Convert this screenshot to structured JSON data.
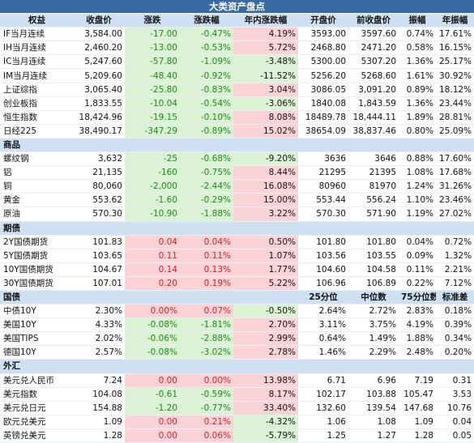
{
  "title": "大类资产盘点",
  "headers": [
    "权益",
    "收盘价",
    "涨跌",
    "涨跌幅",
    "年内涨跌幅",
    "开盘价",
    "前收盘价",
    "振幅",
    "年振幅"
  ],
  "sections": [
    {
      "name": "权益",
      "is_header": true,
      "rows": [
        {
          "name": "IF当月连续",
          "close": "3,584.00",
          "chg": "-17.00",
          "pct": "-0.47%",
          "ytd": "4.19%",
          "open": "3593.00",
          "prev": "3597.60",
          "amp": "0.74%",
          "yamp": "17.61%"
        },
        {
          "name": "IH当月连续",
          "close": "2,460.20",
          "chg": "-13.00",
          "pct": "-0.53%",
          "ytd": "5.72%",
          "open": "2468.80",
          "prev": "2471.20",
          "amp": "0.58%",
          "yamp": "16.15%"
        },
        {
          "name": "IC当月连续",
          "close": "5,247.60",
          "chg": "-57.80",
          "pct": "-1.09%",
          "ytd": "-3.48%",
          "open": "5300.00",
          "prev": "5307.20",
          "amp": "1.36%",
          "yamp": "25.17%"
        },
        {
          "name": "IM当月连续",
          "close": "5,209.60",
          "chg": "-48.40",
          "pct": "-0.92%",
          "ytd": "-11.52%",
          "open": "5256.20",
          "prev": "5268.60",
          "amp": "1.61%",
          "yamp": "30.92%"
        },
        {
          "name": "上证综指",
          "close": "3,065.40",
          "chg": "-25.80",
          "pct": "-0.83%",
          "ytd": "3.04%",
          "open": "3086.05",
          "prev": "3,091.20",
          "amp": "0.89%",
          "yamp": "18.12%"
        },
        {
          "name": "创业板指",
          "close": "1,833.55",
          "chg": "-10.04",
          "pct": "-0.54%",
          "ytd": "-3.06%",
          "open": "1840.08",
          "prev": "1,843.59",
          "amp": "1.36%",
          "yamp": "23.44%"
        },
        {
          "name": "恒生指数",
          "close": "18,424.96",
          "chg": "-19.15",
          "pct": "-0.10%",
          "ytd": "8.08%",
          "open": "18489.78",
          "prev": "18,444.11",
          "amp": "1.89%",
          "yamp": "28.81%"
        },
        {
          "name": "日经225",
          "close": "38,490.17",
          "chg": "-347.29",
          "pct": "-0.89%",
          "ytd": "15.02%",
          "open": "38654.09",
          "prev": "38,837.46",
          "amp": "0.80%",
          "yamp": "25.09%"
        }
      ]
    },
    {
      "name": "商品",
      "rows": [
        {
          "name": "螺纹钢",
          "close": "3,632",
          "chg": "-25",
          "pct": "-0.68%",
          "ytd": "-9.20%",
          "open": "3636",
          "prev": "3646",
          "amp": "0.88%",
          "yamp": "17.60%"
        },
        {
          "name": "铝",
          "close": "21,135",
          "chg": "-160",
          "pct": "-0.75%",
          "ytd": "8.44%",
          "open": "21295",
          "prev": "21395",
          "amp": "1.08%",
          "yamp": "17.68%"
        },
        {
          "name": "铜",
          "close": "80,060",
          "chg": "-2,000",
          "pct": "-2.44%",
          "ytd": "16.08%",
          "open": "80960",
          "prev": "81970",
          "amp": "1.24%",
          "yamp": "31.26%"
        },
        {
          "name": "黄金",
          "close": "553.62",
          "chg": "-1.60",
          "pct": "-0.29%",
          "ytd": "15.00%",
          "open": "553.44",
          "prev": "556.24",
          "amp": "1.10%",
          "yamp": "23.46%"
        },
        {
          "name": "原油",
          "close": "570.30",
          "chg": "-10.90",
          "pct": "-1.88%",
          "ytd": "3.22%",
          "open": "570.30",
          "prev": "571.90",
          "amp": "1.19%",
          "yamp": "27.02%"
        }
      ]
    },
    {
      "name": "期债",
      "rows": [
        {
          "name": "2Y国债期货",
          "close": "101.83",
          "chg": "0.04",
          "pct": "0.04%",
          "ytd": "0.50%",
          "open": "101.80",
          "prev": "101.80",
          "amp": "0.04%",
          "yamp": "0.72%"
        },
        {
          "name": "5Y国债期货",
          "close": "103.65",
          "chg": "0.11",
          "pct": "0.11%",
          "ytd": "1.07%",
          "open": "103.56",
          "prev": "103.55",
          "amp": "0.09%",
          "yamp": "1.32%"
        },
        {
          "name": "10Y国债期货",
          "close": "104.67",
          "chg": "0.14",
          "pct": "0.13%",
          "ytd": "1.77%",
          "open": "104.60",
          "prev": "104.58",
          "amp": "0.11%",
          "yamp": "2.21%"
        },
        {
          "name": "30Y国债期货",
          "close": "107.01",
          "chg": "0.20",
          "pct": "0.19%",
          "ytd": "5.22%",
          "open": "106.96",
          "prev": "106.89",
          "amp": "0.22%",
          "yamp": "7.12%"
        }
      ]
    },
    {
      "name": "国债",
      "sub_headers": [
        "25分位",
        "中位数",
        "75分位数",
        "标准差"
      ],
      "rows": [
        {
          "name": "中债10Y",
          "close": "2.30%",
          "chg": "0.00%",
          "pct": "0.07%",
          "ytd": "-0.50%",
          "open": "2.64%",
          "prev": "2.72%",
          "amp": "2.83%",
          "yamp": "0.18%"
        },
        {
          "name": "美国10Y",
          "close": "4.33%",
          "chg": "-0.08%",
          "pct": "-1.81%",
          "ytd": "2.70%",
          "open": "3.11%",
          "prev": "3.75%",
          "amp": "4.19%",
          "yamp": "0.39%"
        },
        {
          "name": "美国TIPS",
          "close": "2.02%",
          "chg": "-0.06%",
          "pct": "-2.88%",
          "ytd": "2.99%",
          "open": "0.64%",
          "prev": "1.49%",
          "amp": "1.88%",
          "yamp": "0.34%"
        },
        {
          "name": "德国10Y",
          "close": "2.57%",
          "chg": "-0.08%",
          "pct": "-3.02%",
          "ytd": "2.78%",
          "open": "1.46%",
          "prev": "2.29%",
          "amp": "2.48%",
          "yamp": "0.20%"
        }
      ]
    },
    {
      "name": "外汇",
      "rows": [
        {
          "name": "美元兑人民币",
          "close": "7.24",
          "chg": "0.00",
          "pct": "0.00%",
          "ytd": "13.98%",
          "open": "6.71",
          "prev": "6.96",
          "amp": "7.19",
          "yamp": "0.31"
        },
        {
          "name": "美元指数",
          "close": "104.08",
          "chg": "-0.61",
          "pct": "-0.59%",
          "ytd": "8.17%",
          "open": "102.17",
          "prev": "103.88",
          "amp": "105.47",
          "yamp": "3.53"
        },
        {
          "name": "美元兑日元",
          "close": "154.88",
          "chg": "-1.20",
          "pct": "-0.77%",
          "ytd": "33.40%",
          "open": "132.60",
          "prev": "139.54",
          "amp": "147.68",
          "yamp": "10.76"
        },
        {
          "name": "欧元兑美元",
          "close": "1.09",
          "chg": "0.00",
          "pct": "0.21%",
          "ytd": "-4.32%",
          "open": "1.06",
          "prev": "1.08",
          "amp": "1.09",
          "yamp": "0.04"
        },
        {
          "name": "英镑兑美元",
          "close": "1.28",
          "chg": "0.00",
          "pct": "0.06%",
          "ytd": "-5.79%",
          "open": "1.25",
          "prev": "1.27",
          "amp": "1.28",
          "yamp": "0.05"
        }
      ]
    }
  ]
}
